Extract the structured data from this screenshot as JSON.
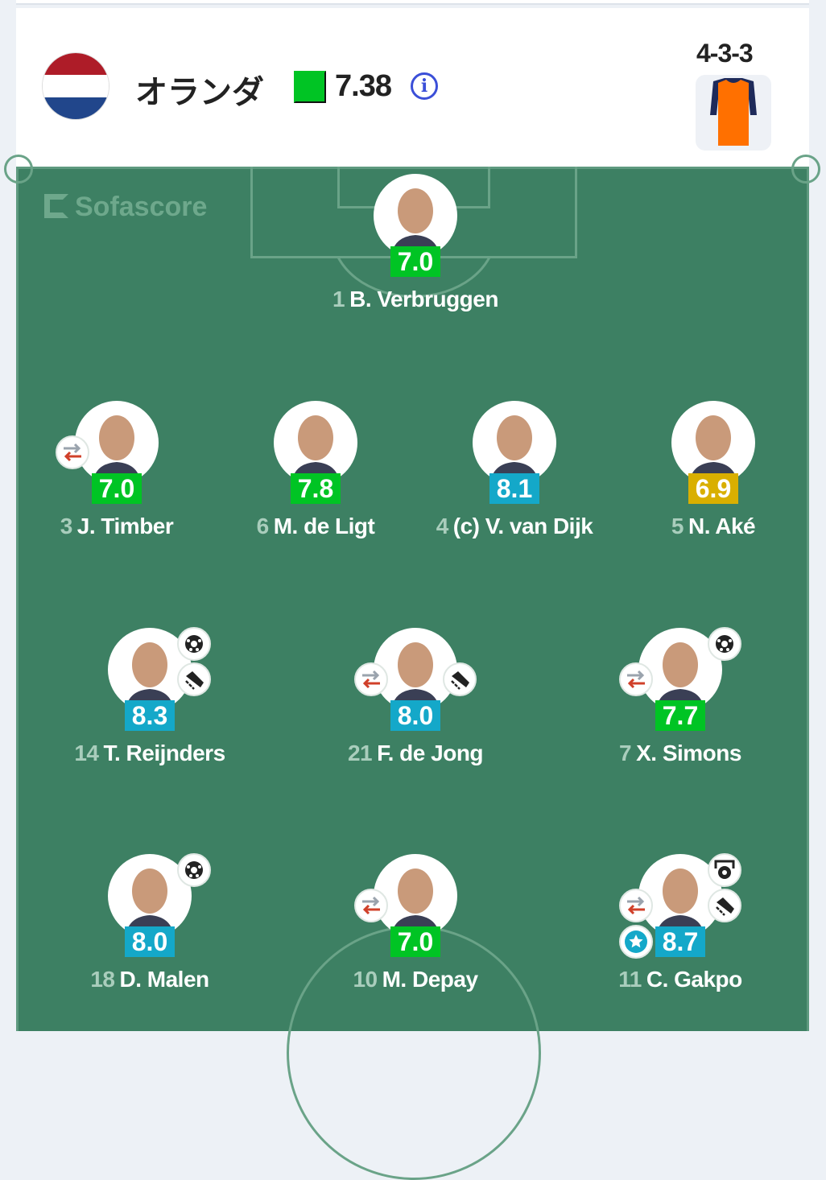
{
  "team": {
    "name": "オランダ",
    "avg_rating": "7.38",
    "formation": "4-3-3",
    "flag_colors": [
      "#ae1c28",
      "#ffffff",
      "#21468b"
    ],
    "kit_color": "#ff7000",
    "kit_sleeve": "#1e2a5a"
  },
  "watermark": "Sofascore",
  "rating_colors": {
    "green": "#00c424",
    "blue": "#14a8c9",
    "yellow": "#d9af00"
  },
  "players": [
    {
      "number": "1",
      "name": "B. Verbruggen",
      "rating": "7.0",
      "color": "green",
      "row": 0,
      "col": 1,
      "cols": 3,
      "sub": false,
      "goal": false,
      "assist": false
    },
    {
      "number": "3",
      "name": "J. Timber",
      "rating": "7.0",
      "color": "green",
      "row": 1,
      "col": 0,
      "cols": 4,
      "sub": true
    },
    {
      "number": "6",
      "name": "M. de Ligt",
      "rating": "7.8",
      "color": "green",
      "row": 1,
      "col": 1,
      "cols": 4
    },
    {
      "number": "4",
      "name": "(c) V. van Dijk",
      "rating": "8.1",
      "color": "blue",
      "row": 1,
      "col": 2,
      "cols": 4
    },
    {
      "number": "5",
      "name": "N. Aké",
      "rating": "6.9",
      "color": "yellow",
      "row": 1,
      "col": 3,
      "cols": 4
    },
    {
      "number": "14",
      "name": "T. Reijnders",
      "rating": "8.3",
      "color": "blue",
      "row": 2,
      "col": 0,
      "cols": 3,
      "goal": true,
      "assist": true
    },
    {
      "number": "21",
      "name": "F. de Jong",
      "rating": "8.0",
      "color": "blue",
      "row": 2,
      "col": 1,
      "cols": 3,
      "sub": true,
      "assist": true
    },
    {
      "number": "7",
      "name": "X. Simons",
      "rating": "7.7",
      "color": "green",
      "row": 2,
      "col": 2,
      "cols": 3,
      "sub": true,
      "goal": true
    },
    {
      "number": "18",
      "name": "D. Malen",
      "rating": "8.0",
      "color": "blue",
      "row": 3,
      "col": 0,
      "cols": 3,
      "goal": true
    },
    {
      "number": "10",
      "name": "M. Depay",
      "rating": "7.0",
      "color": "green",
      "row": 3,
      "col": 1,
      "cols": 3,
      "sub": true
    },
    {
      "number": "11",
      "name": "C. Gakpo",
      "rating": "8.7",
      "color": "blue",
      "row": 3,
      "col": 2,
      "cols": 3,
      "sub": true,
      "penalty_goal": true,
      "assist": true,
      "motm": true
    }
  ]
}
